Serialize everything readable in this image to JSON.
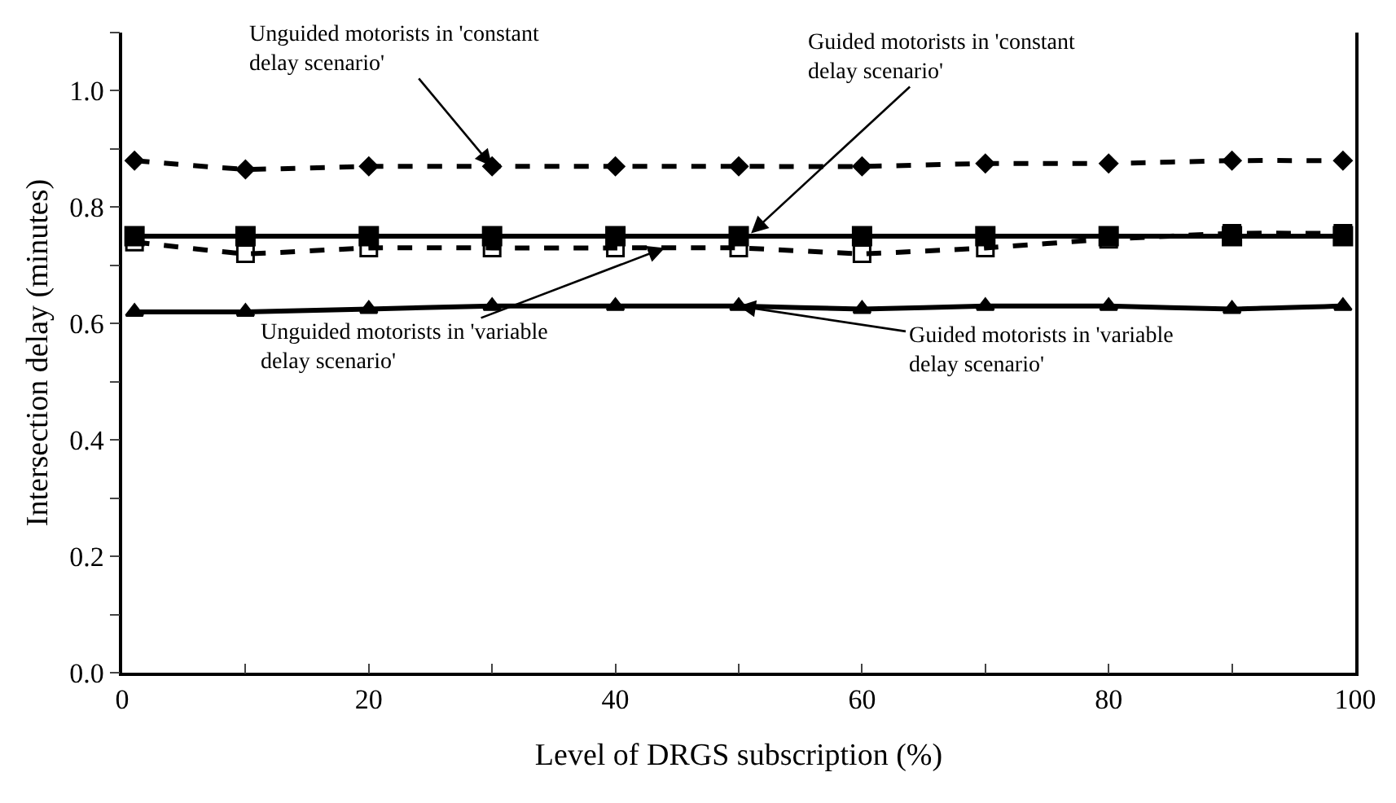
{
  "chart_data": {
    "type": "line",
    "xlabel": "Level of DRGS subscription (%)",
    "ylabel": "Intersection delay (minutes)",
    "x": [
      1,
      10,
      20,
      30,
      40,
      50,
      60,
      70,
      80,
      90,
      99
    ],
    "series": [
      {
        "color": "#000000",
        "marker": "diamond",
        "line_style": "dashed",
        "values": [
          0.88,
          0.865,
          0.87,
          0.87,
          0.87,
          0.87,
          0.87,
          0.875,
          0.875,
          0.88,
          0.88
        ]
      },
      {
        "color": "#000000",
        "marker": "square",
        "line_style": "solid",
        "values": [
          0.75,
          0.75,
          0.75,
          0.75,
          0.75,
          0.75,
          0.75,
          0.75,
          0.75,
          0.75,
          0.75
        ]
      },
      {
        "color": "#000000",
        "marker": "square-open",
        "line_style": "dashed",
        "values": [
          0.74,
          0.72,
          0.73,
          0.73,
          0.73,
          0.73,
          0.72,
          0.73,
          0.745,
          0.755,
          0.755
        ]
      },
      {
        "color": "#000000",
        "marker": "triangle",
        "line_style": "solid",
        "values": [
          0.62,
          0.62,
          0.625,
          0.63,
          0.63,
          0.63,
          0.625,
          0.63,
          0.63,
          0.625,
          0.63
        ]
      }
    ],
    "annotations": [
      {
        "text": "Unguided motorists in 'constant\ndelay scenario'",
        "x": 30,
        "y": 0.87
      },
      {
        "text": "Guided motorists in 'constant\ndelay scenario'",
        "x": 51,
        "y": 0.755
      },
      {
        "text": "Unguided motorists in 'variable\ndelay scenario'",
        "x": 44,
        "y": 0.73
      },
      {
        "text": "Guided motorists in 'variable\ndelay scenario'",
        "x": 50,
        "y": 0.63
      }
    ],
    "xlim": [
      0,
      100
    ],
    "xticks": [
      0,
      {
        "value": 10,
        "label": null
      },
      20,
      {
        "value": 30,
        "label": null
      },
      40,
      {
        "value": 50,
        "label": null
      },
      60,
      {
        "value": 70,
        "label": null
      },
      80,
      {
        "value": 90,
        "label": null
      },
      100
    ],
    "ylim": [
      0,
      1.1
    ],
    "yticks": [
      {
        "value": 0,
        "label": "0.0"
      },
      {
        "value": 0.1,
        "label": null
      },
      0.2,
      {
        "value": 0.3,
        "label": null
      },
      0.4,
      {
        "value": 0.5,
        "label": null
      },
      0.6,
      {
        "value": 0.7,
        "label": null
      },
      0.8,
      {
        "value": 0.9,
        "label": null
      },
      {
        "value": 1.0,
        "label": "1.0"
      },
      {
        "value": 1.1,
        "label": null
      }
    ]
  }
}
